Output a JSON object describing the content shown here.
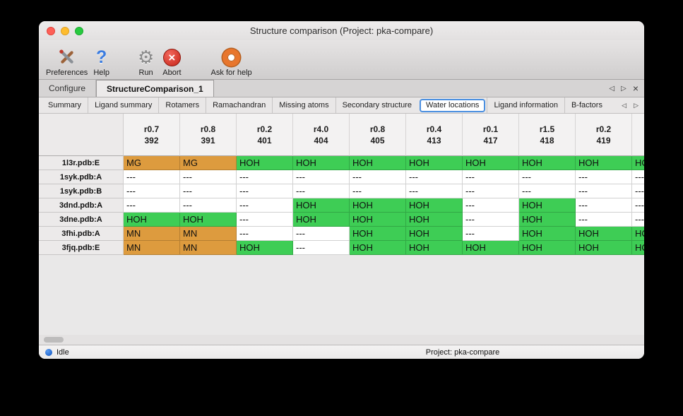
{
  "window": {
    "title": "Structure comparison (Project: pka-compare)"
  },
  "toolbar": {
    "items": [
      {
        "label": "Preferences",
        "icon": "tools-icon"
      },
      {
        "label": "Help",
        "icon": "question-icon"
      },
      {
        "label": "Run",
        "icon": "gear-icon"
      },
      {
        "label": "Abort",
        "icon": "abort-icon"
      },
      {
        "label": "Ask for help",
        "icon": "lifebuoy-icon"
      }
    ]
  },
  "tabs": {
    "items": [
      {
        "label": "Configure",
        "selected": false
      },
      {
        "label": "StructureComparison_1",
        "selected": true
      }
    ],
    "nav": {
      "prev": "◁",
      "next": "▷",
      "close": "×"
    }
  },
  "subtabs": {
    "items": [
      "Summary",
      "Ligand summary",
      "Rotamers",
      "Ramachandran",
      "Missing atoms",
      "Secondary structure",
      "Water locations",
      "Ligand information",
      "B-factors"
    ],
    "selected": "Water locations",
    "nav": {
      "prev": "◁",
      "next": "▷"
    }
  },
  "table": {
    "columns": [
      {
        "line1": "r0.7",
        "line2": "392"
      },
      {
        "line1": "r0.8",
        "line2": "391"
      },
      {
        "line1": "r0.2",
        "line2": "401"
      },
      {
        "line1": "r4.0",
        "line2": "404"
      },
      {
        "line1": "r0.8",
        "line2": "405"
      },
      {
        "line1": "r0.4",
        "line2": "413"
      },
      {
        "line1": "r0.1",
        "line2": "417"
      },
      {
        "line1": "r1.5",
        "line2": "418"
      },
      {
        "line1": "r0.2",
        "line2": "419"
      },
      {
        "line1": "",
        "line2": ""
      }
    ],
    "rows": [
      {
        "label": "1l3r.pdb:E",
        "cells": [
          [
            "MG",
            "metal"
          ],
          [
            "MG",
            "metal"
          ],
          [
            "HOH",
            "water"
          ],
          [
            "HOH",
            "water"
          ],
          [
            "HOH",
            "water"
          ],
          [
            "HOH",
            "water"
          ],
          [
            "HOH",
            "water"
          ],
          [
            "HOH",
            "water"
          ],
          [
            "HOH",
            "water"
          ],
          [
            "HOH",
            "water"
          ]
        ]
      },
      {
        "label": "1syk.pdb:A",
        "cells": [
          [
            "---",
            "none"
          ],
          [
            "---",
            "none"
          ],
          [
            "---",
            "none"
          ],
          [
            "---",
            "none"
          ],
          [
            "---",
            "none"
          ],
          [
            "---",
            "none"
          ],
          [
            "---",
            "none"
          ],
          [
            "---",
            "none"
          ],
          [
            "---",
            "none"
          ],
          [
            "---",
            "none"
          ]
        ]
      },
      {
        "label": "1syk.pdb:B",
        "cells": [
          [
            "---",
            "none"
          ],
          [
            "---",
            "none"
          ],
          [
            "---",
            "none"
          ],
          [
            "---",
            "none"
          ],
          [
            "---",
            "none"
          ],
          [
            "---",
            "none"
          ],
          [
            "---",
            "none"
          ],
          [
            "---",
            "none"
          ],
          [
            "---",
            "none"
          ],
          [
            "---",
            "none"
          ]
        ]
      },
      {
        "label": "3dnd.pdb:A",
        "cells": [
          [
            "---",
            "none"
          ],
          [
            "---",
            "none"
          ],
          [
            "---",
            "none"
          ],
          [
            "HOH",
            "water"
          ],
          [
            "HOH",
            "water"
          ],
          [
            "HOH",
            "water"
          ],
          [
            "---",
            "none"
          ],
          [
            "HOH",
            "water"
          ],
          [
            "---",
            "none"
          ],
          [
            "---",
            "none"
          ]
        ]
      },
      {
        "label": "3dne.pdb:A",
        "cells": [
          [
            "HOH",
            "water"
          ],
          [
            "HOH",
            "water"
          ],
          [
            "---",
            "none"
          ],
          [
            "HOH",
            "water"
          ],
          [
            "HOH",
            "water"
          ],
          [
            "HOH",
            "water"
          ],
          [
            "---",
            "none"
          ],
          [
            "HOH",
            "water"
          ],
          [
            "---",
            "none"
          ],
          [
            "---",
            "none"
          ]
        ]
      },
      {
        "label": "3fhi.pdb:A",
        "cells": [
          [
            "MN",
            "metal"
          ],
          [
            "MN",
            "metal"
          ],
          [
            "---",
            "none"
          ],
          [
            "---",
            "none"
          ],
          [
            "HOH",
            "water"
          ],
          [
            "HOH",
            "water"
          ],
          [
            "---",
            "none"
          ],
          [
            "HOH",
            "water"
          ],
          [
            "HOH",
            "water"
          ],
          [
            "HOH",
            "water"
          ]
        ]
      },
      {
        "label": "3fjq.pdb:E",
        "cells": [
          [
            "MN",
            "metal"
          ],
          [
            "MN",
            "metal"
          ],
          [
            "HOH",
            "water"
          ],
          [
            "---",
            "none"
          ],
          [
            "HOH",
            "water"
          ],
          [
            "HOH",
            "water"
          ],
          [
            "HOH",
            "water"
          ],
          [
            "HOH",
            "water"
          ],
          [
            "HOH",
            "water"
          ],
          [
            "HOH",
            "water"
          ]
        ]
      }
    ]
  },
  "statusbar": {
    "status": "Idle",
    "project": "Project: pka-compare"
  },
  "colors": {
    "water": "#3ecd55",
    "metal": "#dd9b3e",
    "none": "#ffffff"
  }
}
